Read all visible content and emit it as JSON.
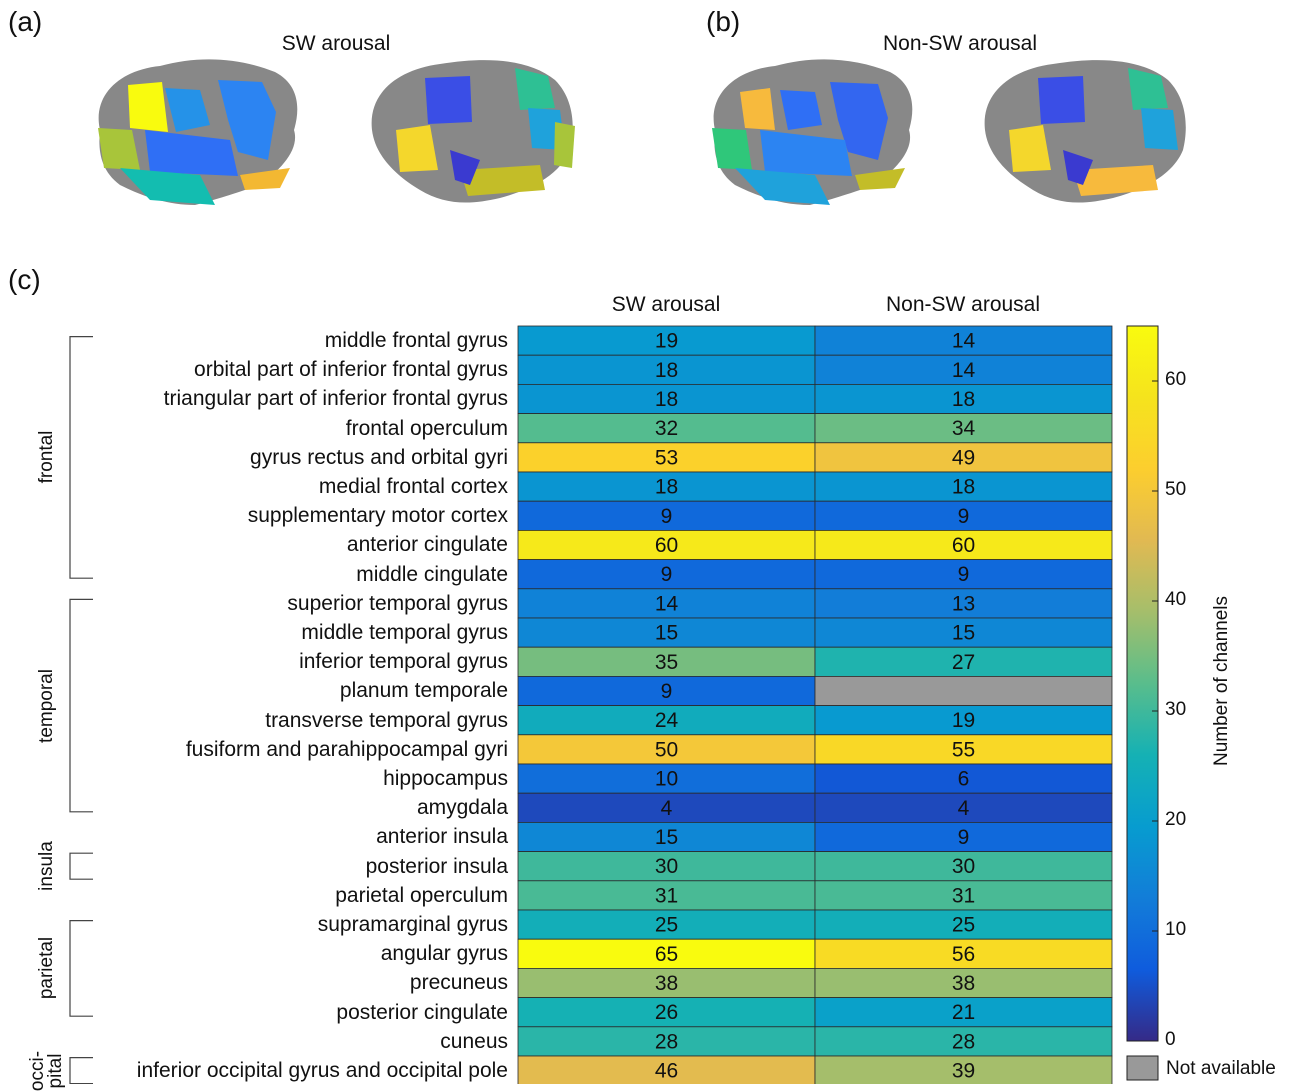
{
  "panels": {
    "a_label": "(a)",
    "b_label": "(b)",
    "c_label": "(c)",
    "a_title": "SW arousal",
    "b_title": "Non-SW arousal"
  },
  "chart_data": {
    "type": "heatmap",
    "columns": [
      "SW arousal",
      "Non-SW arousal"
    ],
    "rows": [
      "middle frontal gyrus",
      "orbital part of inferior frontal gyrus",
      "triangular part of inferior frontal gyrus",
      "frontal operculum",
      "gyrus rectus and orbital gyri",
      "medial frontal cortex",
      "supplementary motor cortex",
      "anterior cingulate",
      "middle cingulate",
      "superior temporal gyrus",
      "middle temporal gyrus",
      "inferior temporal gyrus",
      "planum temporale",
      "transverse temporal gyrus",
      "fusiform and parahippocampal gyri",
      "hippocampus",
      "amygdala",
      "anterior insula",
      "posterior insula",
      "parietal operculum",
      "supramarginal gyrus",
      "angular gyrus",
      "precuneus",
      "posterior cingulate",
      "cuneus",
      "inferior occipital gyrus and occipital pole"
    ],
    "values": [
      [
        19,
        14
      ],
      [
        18,
        14
      ],
      [
        18,
        18
      ],
      [
        32,
        34
      ],
      [
        53,
        49
      ],
      [
        18,
        18
      ],
      [
        9,
        9
      ],
      [
        60,
        60
      ],
      [
        9,
        9
      ],
      [
        14,
        13
      ],
      [
        15,
        15
      ],
      [
        35,
        27
      ],
      [
        9,
        null
      ],
      [
        24,
        19
      ],
      [
        50,
        55
      ],
      [
        10,
        6
      ],
      [
        4,
        4
      ],
      [
        15,
        9
      ],
      [
        30,
        30
      ],
      [
        31,
        31
      ],
      [
        25,
        25
      ],
      [
        65,
        56
      ],
      [
        38,
        38
      ],
      [
        26,
        21
      ],
      [
        28,
        28
      ],
      [
        46,
        39
      ]
    ],
    "groups": [
      {
        "label": "frontal",
        "first_row": 0,
        "last_row": 8
      },
      {
        "label": "temporal",
        "first_row": 9,
        "last_row": 16
      },
      {
        "label": "insula",
        "first_row": 18,
        "last_row": 18
      },
      {
        "label": "parietal",
        "first_row": 20,
        "last_row": 23
      },
      {
        "label": "occi-\npital",
        "first_row": 25,
        "last_row": 25
      }
    ],
    "colorbar": {
      "label": "Number of channels",
      "range": [
        0,
        65
      ],
      "ticks": [
        0,
        10,
        20,
        30,
        40,
        50,
        60
      ],
      "colormap": "parula",
      "missing_label": "Not available",
      "missing_color": "#999999"
    }
  }
}
